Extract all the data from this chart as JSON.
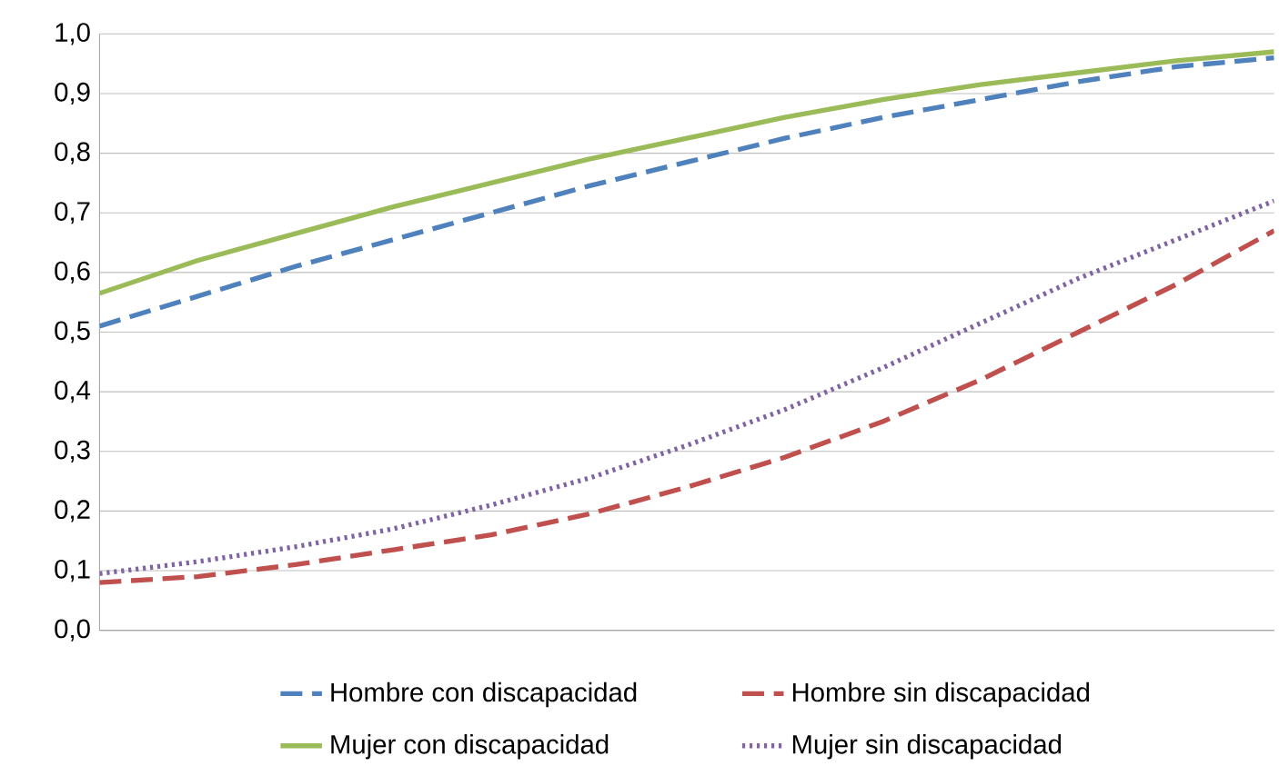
{
  "chart_data": {
    "type": "line",
    "categories": [
      null,
      null,
      null,
      null,
      null,
      null,
      null,
      null,
      null,
      null,
      null,
      null,
      null
    ],
    "series": [
      {
        "name": "Hombre con discapacidad",
        "color": "#4f81bd",
        "line_style": "dashed",
        "values": [
          0.51,
          0.56,
          0.61,
          0.655,
          0.7,
          0.745,
          0.785,
          0.825,
          0.86,
          0.89,
          0.92,
          0.945,
          0.96
        ]
      },
      {
        "name": "Hombre sin discapacidad",
        "color": "#c0504d",
        "line_style": "dashed",
        "values": [
          0.08,
          0.09,
          0.11,
          0.135,
          0.16,
          0.195,
          0.24,
          0.29,
          0.35,
          0.42,
          0.5,
          0.58,
          0.67
        ]
      },
      {
        "name": "Mujer con discapacidad",
        "color": "#9bbb59",
        "line_style": "solid",
        "values": [
          0.565,
          0.62,
          0.665,
          0.71,
          0.75,
          0.79,
          0.825,
          0.86,
          0.89,
          0.915,
          0.935,
          0.955,
          0.97
        ]
      },
      {
        "name": "Mujer sin discapacidad",
        "color": "#8064a2",
        "line_style": "dotted",
        "values": [
          0.095,
          0.115,
          0.14,
          0.17,
          0.21,
          0.255,
          0.31,
          0.37,
          0.44,
          0.515,
          0.59,
          0.655,
          0.72
        ]
      }
    ],
    "ylim": [
      0,
      1
    ],
    "yticks": [
      {
        "value": 0,
        "label": "0,0"
      },
      {
        "value": 0.1,
        "label": "0,1"
      },
      {
        "value": 0.2,
        "label": "0,2"
      },
      {
        "value": 0.3,
        "label": "0,3"
      },
      {
        "value": 0.4,
        "label": "0,4"
      },
      {
        "value": 0.5,
        "label": "0,5"
      },
      {
        "value": 0.6,
        "label": "0,6"
      },
      {
        "value": 0.7,
        "label": "0,7"
      },
      {
        "value": 0.8,
        "label": "0,8"
      },
      {
        "value": 0.9,
        "label": "0,9"
      },
      {
        "value": 1,
        "label": "1,0"
      }
    ],
    "grid": "y",
    "legend": "bottom",
    "marker": "none"
  }
}
